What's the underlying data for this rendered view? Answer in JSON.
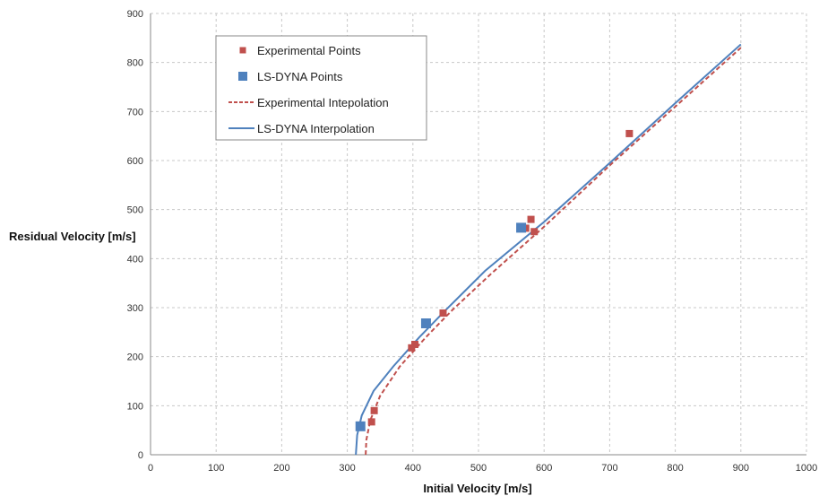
{
  "chart_data": {
    "type": "scatter",
    "xlabel": "Initial Velocity [m/s]",
    "ylabel": "Residual Velocity [m/s]",
    "xlim": [
      0,
      1000
    ],
    "ylim": [
      0,
      900
    ],
    "x_ticks": [
      0,
      100,
      200,
      300,
      400,
      500,
      600,
      700,
      800,
      900,
      1000
    ],
    "y_ticks": [
      0,
      100,
      200,
      300,
      400,
      500,
      600,
      700,
      800,
      900
    ],
    "grid": true,
    "legend_position": "top-left",
    "series": [
      {
        "name": "Experimental Points",
        "kind": "markers",
        "marker": "square",
        "color": "#c0504d",
        "points": [
          [
            337,
            67
          ],
          [
            341,
            90
          ],
          [
            398,
            218
          ],
          [
            403,
            225
          ],
          [
            446,
            289
          ],
          [
            572,
            462
          ],
          [
            580,
            480
          ],
          [
            585,
            455
          ],
          [
            730,
            655
          ]
        ]
      },
      {
        "name": "LS-DYNA Points",
        "kind": "markers",
        "marker": "square",
        "color": "#4f81bd",
        "points": [
          [
            320,
            58
          ],
          [
            420,
            268
          ],
          [
            565,
            463
          ]
        ]
      },
      {
        "name": "Experimental Intepolation",
        "kind": "line",
        "style": "dashed",
        "color": "#c0504d",
        "points": [
          [
            328,
            0
          ],
          [
            329,
            30
          ],
          [
            335,
            70
          ],
          [
            350,
            120
          ],
          [
            380,
            180
          ],
          [
            420,
            240
          ],
          [
            460,
            295
          ],
          [
            520,
            370
          ],
          [
            600,
            465
          ],
          [
            700,
            590
          ],
          [
            800,
            710
          ],
          [
            900,
            830
          ]
        ]
      },
      {
        "name": "LS-DYNA Interpolation",
        "kind": "line",
        "style": "solid",
        "color": "#4f81bd",
        "points": [
          [
            313,
            0
          ],
          [
            315,
            40
          ],
          [
            322,
            80
          ],
          [
            340,
            130
          ],
          [
            370,
            180
          ],
          [
            410,
            240
          ],
          [
            450,
            295
          ],
          [
            510,
            375
          ],
          [
            600,
            475
          ],
          [
            700,
            595
          ],
          [
            800,
            717
          ],
          [
            900,
            837
          ]
        ]
      }
    ]
  }
}
